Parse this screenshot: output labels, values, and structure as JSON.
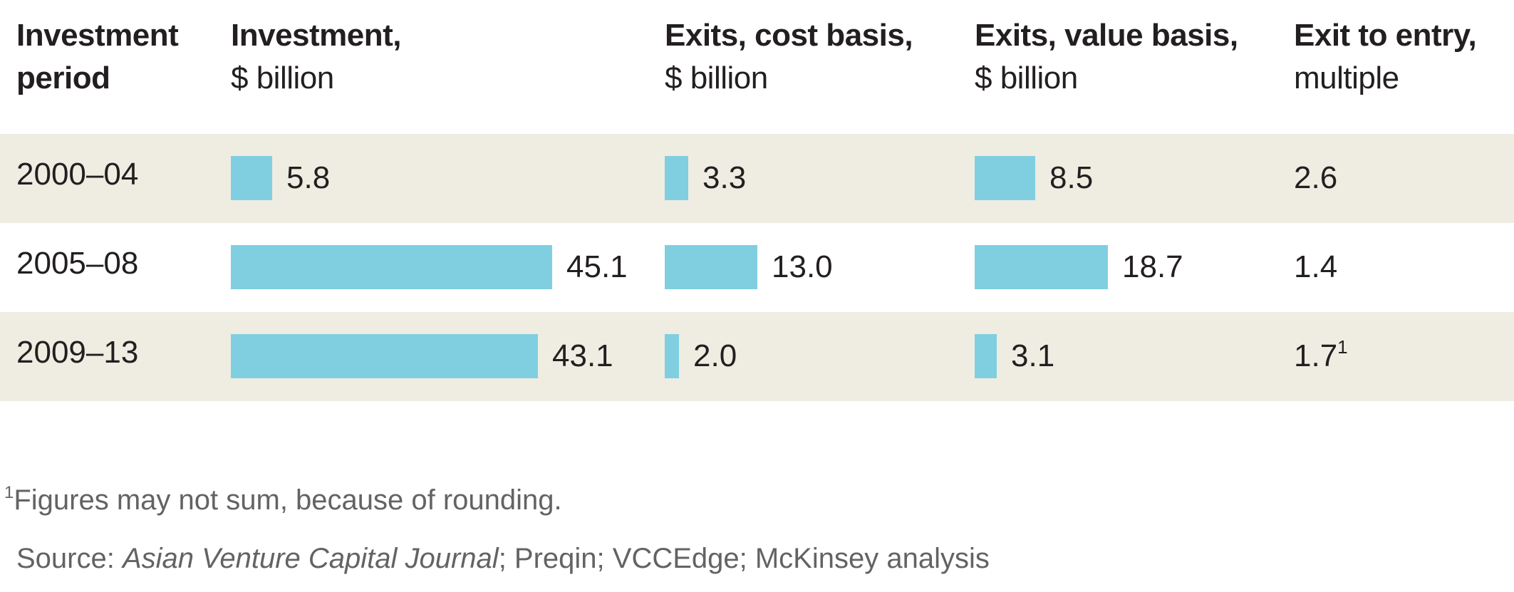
{
  "chart_data": {
    "type": "table",
    "title": "",
    "columns": [
      {
        "key": "period",
        "label_bold": "Investment",
        "label_sub": "period"
      },
      {
        "key": "investment",
        "label_bold": "Investment,",
        "label_sub": "$ billion"
      },
      {
        "key": "exits_cost",
        "label_bold": "Exits, cost basis,",
        "label_sub": "$ billion"
      },
      {
        "key": "exits_value",
        "label_bold": "Exits, value basis,",
        "label_sub": "$ billion"
      },
      {
        "key": "multiple",
        "label_bold": "Exit to entry,",
        "label_sub": "multiple"
      }
    ],
    "categories": [
      "2000–04",
      "2005–08",
      "2009–13"
    ],
    "series": [
      {
        "name": "Investment, $ billion",
        "values": [
          5.8,
          45.1,
          43.1
        ],
        "labels": [
          "5.8",
          "45.1",
          "43.1"
        ]
      },
      {
        "name": "Exits, cost basis, $ billion",
        "values": [
          3.3,
          13.0,
          2.0
        ],
        "labels": [
          "3.3",
          "13.0",
          "2.0"
        ]
      },
      {
        "name": "Exits, value basis, $ billion",
        "values": [
          8.5,
          18.7,
          3.1
        ],
        "labels": [
          "8.5",
          "18.7",
          "3.1"
        ]
      },
      {
        "name": "Exit to entry, multiple",
        "values": [
          2.6,
          1.4,
          1.7
        ],
        "labels": [
          "2.6",
          "1.4",
          "1.7"
        ],
        "footnote_marks": [
          "",
          "",
          "1"
        ]
      }
    ],
    "bar_color": "#7fcfe1",
    "row_shade_color": "#efece2"
  },
  "footnotes": {
    "note_mark": "1",
    "note_text": "Figures may not sum, because of rounding.",
    "source_prefix": "Source: ",
    "source_italic": "Asian Venture Capital Journal",
    "source_rest": "; Preqin; VCCEdge; McKinsey analysis"
  }
}
